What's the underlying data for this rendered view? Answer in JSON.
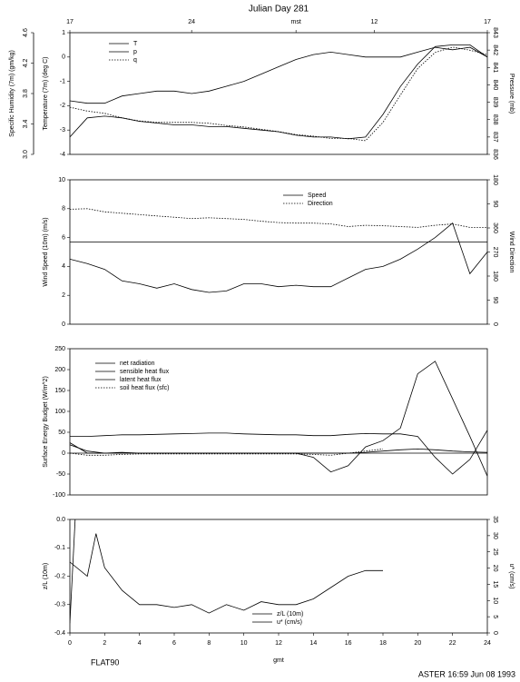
{
  "chart_data": [
    {
      "type": "line",
      "title": "Julian Day 281",
      "ylabel": "Temperature (7m) (deg C)",
      "y2label": "Pressure (mb)",
      "y3label": "Specific Humidity (7m) (gm/kg)",
      "x": [
        0,
        1,
        2,
        3,
        4,
        5,
        6,
        7,
        8,
        9,
        10,
        11,
        12,
        13,
        14,
        15,
        16,
        17,
        18,
        19,
        20,
        21,
        22,
        23,
        24
      ],
      "xlim": [
        0,
        24
      ],
      "x2ticks": [
        {
          "value": 0,
          "label": "17"
        },
        {
          "value": 7,
          "label": "24"
        },
        {
          "value": 13,
          "label": "mst"
        },
        {
          "value": 17.5,
          "label": "12"
        },
        {
          "value": 24,
          "label": "17"
        }
      ],
      "ylim": [
        -4,
        1
      ],
      "yticks": [
        -4,
        -3,
        -2,
        -1,
        0,
        1
      ],
      "y2lim": [
        836,
        843
      ],
      "y2ticks": [
        836,
        837,
        838,
        839,
        840,
        841,
        842,
        843
      ],
      "y3lim": [
        3,
        4.6
      ],
      "y3ticks": [
        {
          "value": 3,
          "label": "3.0"
        },
        3.4,
        3.8,
        4.2,
        4.6
      ],
      "series": [
        {
          "name": "T",
          "color": "#000000",
          "style": "solid",
          "values": [
            -1.8,
            -1.9,
            -1.9,
            -1.6,
            -1.5,
            -1.4,
            -1.4,
            -1.5,
            -1.4,
            -1.2,
            -1.0,
            -0.7,
            -0.4,
            -0.1,
            0.1,
            0.2,
            0.1,
            0.0,
            0.0,
            0.0,
            0.2,
            0.4,
            0.3,
            0.4,
            0.0
          ]
        },
        {
          "name": "p",
          "color": "#000000",
          "style": "solid",
          "axis": "y2",
          "values": [
            837.0,
            838.1,
            838.2,
            838.1,
            837.9,
            837.8,
            837.7,
            837.7,
            837.6,
            837.6,
            837.5,
            837.4,
            837.3,
            837.1,
            837.0,
            837.0,
            836.9,
            837.0,
            838.3,
            839.9,
            841.2,
            842.2,
            842.3,
            842.3,
            841.6
          ]
        },
        {
          "name": "q",
          "color": "#000000",
          "style": "dotted",
          "axis": "y3",
          "values": [
            3.62,
            3.57,
            3.54,
            3.48,
            3.44,
            3.42,
            3.42,
            3.42,
            3.41,
            3.38,
            3.36,
            3.33,
            3.3,
            3.26,
            3.24,
            3.21,
            3.21,
            3.18,
            3.42,
            3.78,
            4.13,
            4.34,
            4.41,
            4.37,
            4.31
          ]
        }
      ]
    },
    {
      "type": "line",
      "ylabel": "Wind Speed (10m) (m/s)",
      "y2label": "Wind Direction",
      "x": [
        0,
        1,
        2,
        3,
        4,
        5,
        6,
        7,
        8,
        9,
        10,
        11,
        12,
        13,
        14,
        15,
        16,
        17,
        18,
        19,
        20,
        21,
        22,
        23,
        24
      ],
      "xlim": [
        0,
        24
      ],
      "ylim": [
        0,
        10
      ],
      "yticks": [
        0,
        2,
        4,
        6,
        8,
        10
      ],
      "y2lim": [
        0,
        540
      ],
      "y2ticks": [
        0,
        90,
        180,
        270,
        360,
        {
          "value": 450,
          "label": "90"
        },
        {
          "value": 540,
          "label": "180"
        }
      ],
      "hline": 5.7,
      "series": [
        {
          "name": "Speed",
          "color": "#000000",
          "style": "solid",
          "values": [
            4.5,
            4.2,
            3.8,
            3.0,
            2.8,
            2.5,
            2.8,
            2.4,
            2.2,
            2.3,
            2.8,
            2.8,
            2.6,
            2.7,
            2.6,
            2.6,
            3.2,
            3.8,
            4.0,
            4.5,
            5.2,
            6.0,
            7.0,
            3.5,
            5.0
          ]
        },
        {
          "name": "Direction",
          "color": "#000000",
          "style": "dotted",
          "axis": "y2",
          "values": [
            430,
            432,
            420,
            415,
            410,
            405,
            400,
            395,
            398,
            395,
            392,
            385,
            380,
            378,
            378,
            375,
            365,
            370,
            368,
            365,
            362,
            370,
            375,
            362,
            362
          ]
        }
      ]
    },
    {
      "type": "line",
      "ylabel": "Surface Energy Budget (W/m^2)",
      "x": [
        0,
        1,
        2,
        3,
        4,
        5,
        6,
        7,
        8,
        9,
        10,
        11,
        12,
        13,
        14,
        15,
        16,
        17,
        18,
        19,
        20,
        21,
        22,
        23,
        24
      ],
      "xlim": [
        0,
        24
      ],
      "ylim": [
        -100,
        250
      ],
      "yticks": [
        -100,
        -50,
        0,
        50,
        100,
        150,
        200,
        250
      ],
      "zero_line": true,
      "series": [
        {
          "name": "net radiation",
          "color": "#000000",
          "style": "solid",
          "values": [
            40,
            40,
            42,
            44,
            44,
            45,
            46,
            47,
            48,
            48,
            46,
            45,
            44,
            44,
            42,
            42,
            45,
            47,
            46,
            46,
            40,
            -10,
            -50,
            -15,
            55
          ]
        },
        {
          "name": "sensible heat flux",
          "color": "#000000",
          "style": "solid",
          "values": [
            20,
            5,
            0,
            2,
            0,
            0,
            0,
            0,
            0,
            0,
            0,
            0,
            0,
            0,
            -10,
            -45,
            -30,
            15,
            30,
            60,
            190,
            220,
            130,
            40,
            -55
          ]
        },
        {
          "name": "latent heat flux",
          "color": "#000000",
          "style": "solid",
          "values": [
            25,
            0,
            0,
            0,
            0,
            0,
            0,
            0,
            0,
            0,
            0,
            0,
            0,
            0,
            0,
            0,
            0,
            2,
            5,
            8,
            10,
            8,
            5,
            3,
            2
          ]
        },
        {
          "name": "soil heat flux (sfc)",
          "color": "#000000",
          "style": "dotted",
          "values": [
            0,
            -5,
            -5,
            -3,
            -2,
            -2,
            -2,
            -2,
            -2,
            -2,
            -2,
            -2,
            -2,
            -2,
            -3,
            -5,
            0,
            5,
            10,
            null,
            null,
            null,
            null,
            null,
            null
          ]
        }
      ]
    },
    {
      "type": "line",
      "ylabel": "z/L (10m)",
      "y2label": "u* (cm/s)",
      "xlabel": "gmt",
      "xlim": [
        0,
        24
      ],
      "xticks": [
        0,
        2,
        4,
        6,
        8,
        10,
        12,
        14,
        16,
        18,
        20,
        22,
        24
      ],
      "ylim": [
        -0.4,
        0
      ],
      "yticks": [
        -0.4,
        -0.3,
        -0.2,
        -0.1,
        {
          "value": 0,
          "label": "0.0"
        }
      ],
      "y2lim": [
        0,
        35
      ],
      "y2ticks": [
        0,
        5,
        10,
        15,
        20,
        25,
        30,
        35
      ],
      "series": [
        {
          "name": "z/L (10m)",
          "color": "#000000",
          "style": "solid",
          "x": [
            0,
            1,
            1.5,
            2,
            3,
            4,
            5,
            6,
            7,
            8,
            9,
            10,
            11,
            12,
            13,
            14,
            15,
            16,
            17,
            18
          ],
          "values": [
            -0.15,
            -0.2,
            -0.05,
            -0.17,
            -0.25,
            -0.3,
            -0.3,
            -0.31,
            -0.3,
            -0.33,
            -0.3,
            -0.32,
            -0.29,
            -0.3,
            -0.3,
            -0.28,
            -0.24,
            -0.2,
            -0.18,
            -0.18
          ]
        },
        {
          "name": "u* (cm/s)",
          "color": "#000000",
          "style": "solid",
          "axis": "y2",
          "x": [
            0,
            0.3
          ],
          "values": [
            3,
            35
          ]
        }
      ]
    }
  ],
  "label": "FLAT90",
  "footer": "ASTER 16:59 Jun 08 1993"
}
